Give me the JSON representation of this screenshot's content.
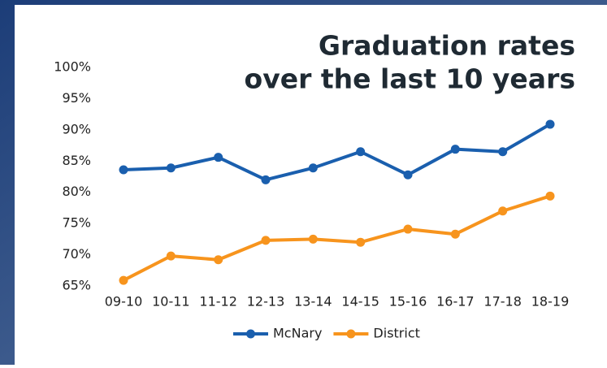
{
  "chart_data": {
    "type": "line",
    "title": [
      "Graduation rates",
      "over the last 10 years"
    ],
    "categories": [
      "09-10",
      "10-11",
      "11-12",
      "12-13",
      "13-14",
      "14-15",
      "15-16",
      "16-17",
      "17-18",
      "18-19"
    ],
    "series": [
      {
        "name": "McNary",
        "color": "#1a5fae",
        "values": [
          83.6,
          83.9,
          85.6,
          82.0,
          83.9,
          86.5,
          82.8,
          86.9,
          86.5,
          90.9
        ]
      },
      {
        "name": "District",
        "color": "#f7941d",
        "values": [
          65.9,
          69.8,
          69.2,
          72.3,
          72.5,
          72.0,
          74.1,
          73.3,
          77.0,
          79.4
        ]
      }
    ],
    "ylim": [
      65,
      100
    ],
    "yticks": [
      {
        "value": 65,
        "label": "65%"
      },
      {
        "value": 70,
        "label": "70%"
      },
      {
        "value": 75,
        "label": "75%"
      },
      {
        "value": 80,
        "label": "80%"
      },
      {
        "value": 85,
        "label": "85%"
      },
      {
        "value": 90,
        "label": "90%"
      },
      {
        "value": 95,
        "label": "95%"
      },
      {
        "value": 100,
        "label": "100%"
      }
    ],
    "legend": "bottom"
  }
}
